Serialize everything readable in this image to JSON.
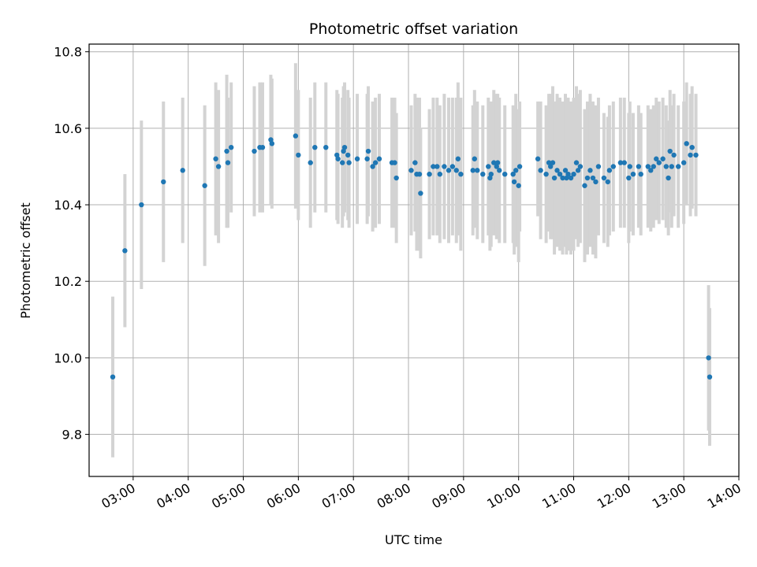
{
  "chart_data": {
    "type": "scatter",
    "title": "Photometric offset variation",
    "xlabel": "UTC time",
    "ylabel": "Photometric offset",
    "x_unit": "hour of day (UTC, decimal)",
    "xlim": [
      2.2,
      14.0
    ],
    "ylim": [
      9.69,
      10.82
    ],
    "x_ticks": [
      3,
      4,
      5,
      6,
      7,
      8,
      9,
      10,
      11,
      12,
      13,
      14
    ],
    "x_tick_labels": [
      "03:00",
      "04:00",
      "05:00",
      "06:00",
      "07:00",
      "08:00",
      "09:00",
      "10:00",
      "11:00",
      "12:00",
      "13:00",
      "14:00"
    ],
    "y_ticks": [
      9.8,
      10.0,
      10.2,
      10.4,
      10.6,
      10.8
    ],
    "y_tick_labels": [
      "9.8",
      "10.0",
      "10.2",
      "10.4",
      "10.6",
      "10.8"
    ],
    "grid": true,
    "series": [
      {
        "marker_color": "#1f77b4",
        "errorbar_color": "#d3d3d3",
        "x": [
          2.63,
          2.85,
          3.15,
          3.55,
          3.9,
          4.3,
          4.5,
          4.55,
          4.7,
          4.72,
          4.78,
          5.2,
          5.3,
          5.35,
          5.5,
          5.52,
          5.95,
          6.0,
          6.22,
          6.3,
          6.5,
          6.7,
          6.72,
          6.8,
          6.82,
          6.84,
          6.9,
          6.92,
          7.07,
          7.25,
          7.27,
          7.35,
          7.4,
          7.47,
          7.7,
          7.75,
          7.78,
          8.05,
          8.12,
          8.15,
          8.2,
          8.22,
          8.38,
          8.45,
          8.52,
          8.57,
          8.65,
          8.73,
          8.8,
          8.87,
          8.9,
          8.95,
          9.17,
          9.2,
          9.25,
          9.35,
          9.45,
          9.48,
          9.5,
          9.55,
          9.6,
          9.62,
          9.65,
          9.75,
          9.9,
          9.92,
          9.95,
          10.0,
          10.02,
          10.35,
          10.4,
          10.5,
          10.55,
          10.58,
          10.62,
          10.65,
          10.7,
          10.75,
          10.8,
          10.85,
          10.87,
          10.9,
          10.95,
          11.0,
          11.05,
          11.08,
          11.12,
          11.2,
          11.25,
          11.3,
          11.35,
          11.4,
          11.45,
          11.55,
          11.62,
          11.65,
          11.72,
          11.85,
          11.92,
          12.0,
          12.02,
          12.08,
          12.18,
          12.22,
          12.35,
          12.4,
          12.45,
          12.5,
          12.55,
          12.62,
          12.68,
          12.72,
          12.75,
          12.78,
          12.82,
          12.9,
          13.0,
          13.05,
          13.12,
          13.15,
          13.22,
          13.45,
          13.47
        ],
        "y": [
          9.95,
          10.28,
          10.4,
          10.46,
          10.49,
          10.45,
          10.52,
          10.5,
          10.54,
          10.51,
          10.55,
          10.54,
          10.55,
          10.55,
          10.57,
          10.56,
          10.58,
          10.53,
          10.51,
          10.55,
          10.55,
          10.53,
          10.52,
          10.51,
          10.54,
          10.55,
          10.53,
          10.51,
          10.52,
          10.52,
          10.54,
          10.5,
          10.51,
          10.52,
          10.51,
          10.51,
          10.47,
          10.49,
          10.51,
          10.48,
          10.48,
          10.43,
          10.48,
          10.5,
          10.5,
          10.48,
          10.5,
          10.49,
          10.5,
          10.49,
          10.52,
          10.48,
          10.49,
          10.52,
          10.49,
          10.48,
          10.5,
          10.47,
          10.48,
          10.51,
          10.5,
          10.51,
          10.49,
          10.48,
          10.48,
          10.46,
          10.49,
          10.45,
          10.5,
          10.52,
          10.49,
          10.48,
          10.51,
          10.5,
          10.51,
          10.47,
          10.49,
          10.48,
          10.47,
          10.49,
          10.47,
          10.48,
          10.47,
          10.48,
          10.51,
          10.49,
          10.5,
          10.45,
          10.47,
          10.49,
          10.47,
          10.46,
          10.5,
          10.47,
          10.46,
          10.49,
          10.5,
          10.51,
          10.51,
          10.47,
          10.5,
          10.48,
          10.5,
          10.48,
          10.5,
          10.49,
          10.5,
          10.52,
          10.51,
          10.52,
          10.5,
          10.47,
          10.54,
          10.5,
          10.53,
          10.5,
          10.51,
          10.56,
          10.53,
          10.55,
          10.53,
          10.0,
          9.95
        ],
        "y_err": [
          0.21,
          0.2,
          0.22,
          0.21,
          0.19,
          0.21,
          0.2,
          0.2,
          0.2,
          0.17,
          0.17,
          0.17,
          0.17,
          0.17,
          0.17,
          0.17,
          0.19,
          0.17,
          0.17,
          0.17,
          0.17,
          0.17,
          0.17,
          0.17,
          0.17,
          0.17,
          0.17,
          0.17,
          0.17,
          0.17,
          0.17,
          0.17,
          0.17,
          0.17,
          0.17,
          0.17,
          0.17,
          0.17,
          0.18,
          0.2,
          0.2,
          0.17,
          0.17,
          0.18,
          0.18,
          0.18,
          0.19,
          0.19,
          0.18,
          0.19,
          0.2,
          0.2,
          0.17,
          0.18,
          0.18,
          0.18,
          0.18,
          0.19,
          0.19,
          0.19,
          0.19,
          0.18,
          0.19,
          0.18,
          0.18,
          0.19,
          0.2,
          0.2,
          0.17,
          0.15,
          0.18,
          0.18,
          0.18,
          0.19,
          0.2,
          0.2,
          0.2,
          0.2,
          0.2,
          0.2,
          0.2,
          0.2,
          0.2,
          0.2,
          0.2,
          0.2,
          0.2,
          0.2,
          0.2,
          0.2,
          0.2,
          0.2,
          0.18,
          0.17,
          0.17,
          0.17,
          0.17,
          0.17,
          0.17,
          0.17,
          0.17,
          0.16,
          0.16,
          0.16,
          0.16,
          0.16,
          0.16,
          0.16,
          0.16,
          0.16,
          0.16,
          0.15,
          0.16,
          0.16,
          0.16,
          0.16,
          0.16,
          0.16,
          0.16,
          0.16,
          0.16,
          0.19,
          0.18
        ]
      }
    ]
  }
}
